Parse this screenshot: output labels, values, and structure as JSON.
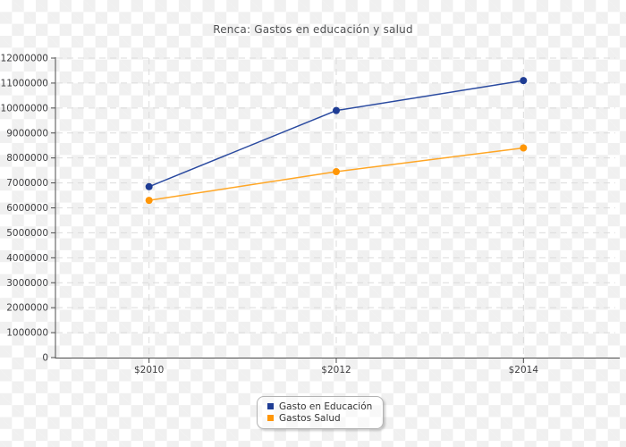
{
  "chart_data": {
    "type": "line",
    "title": "Renca: Gastos en educación y salud",
    "xlabel": "",
    "ylabel": "",
    "categories": [
      "$2010",
      "$2012",
      "$2014"
    ],
    "series": [
      {
        "name": "Gasto en Educación",
        "color": "#2a4aa0",
        "point_color": "#1e3c94",
        "values": [
          6850000,
          9900000,
          11100000
        ]
      },
      {
        "name": "Gastos Salud",
        "color": "#ffa625",
        "point_color": "#ff9606",
        "values": [
          6300000,
          7450000,
          8400000
        ]
      }
    ],
    "ylim": [
      0,
      12000000
    ],
    "ytick_step": 1000000,
    "ytick_labels": [
      "0",
      "1000000",
      "2000000",
      "3000000",
      "4000000",
      "5000000",
      "6000000",
      "7000000",
      "8000000",
      "9000000",
      "10000000",
      "11000000",
      "12000000"
    ],
    "grid": "dashed",
    "legend_position": "bottom-center"
  }
}
